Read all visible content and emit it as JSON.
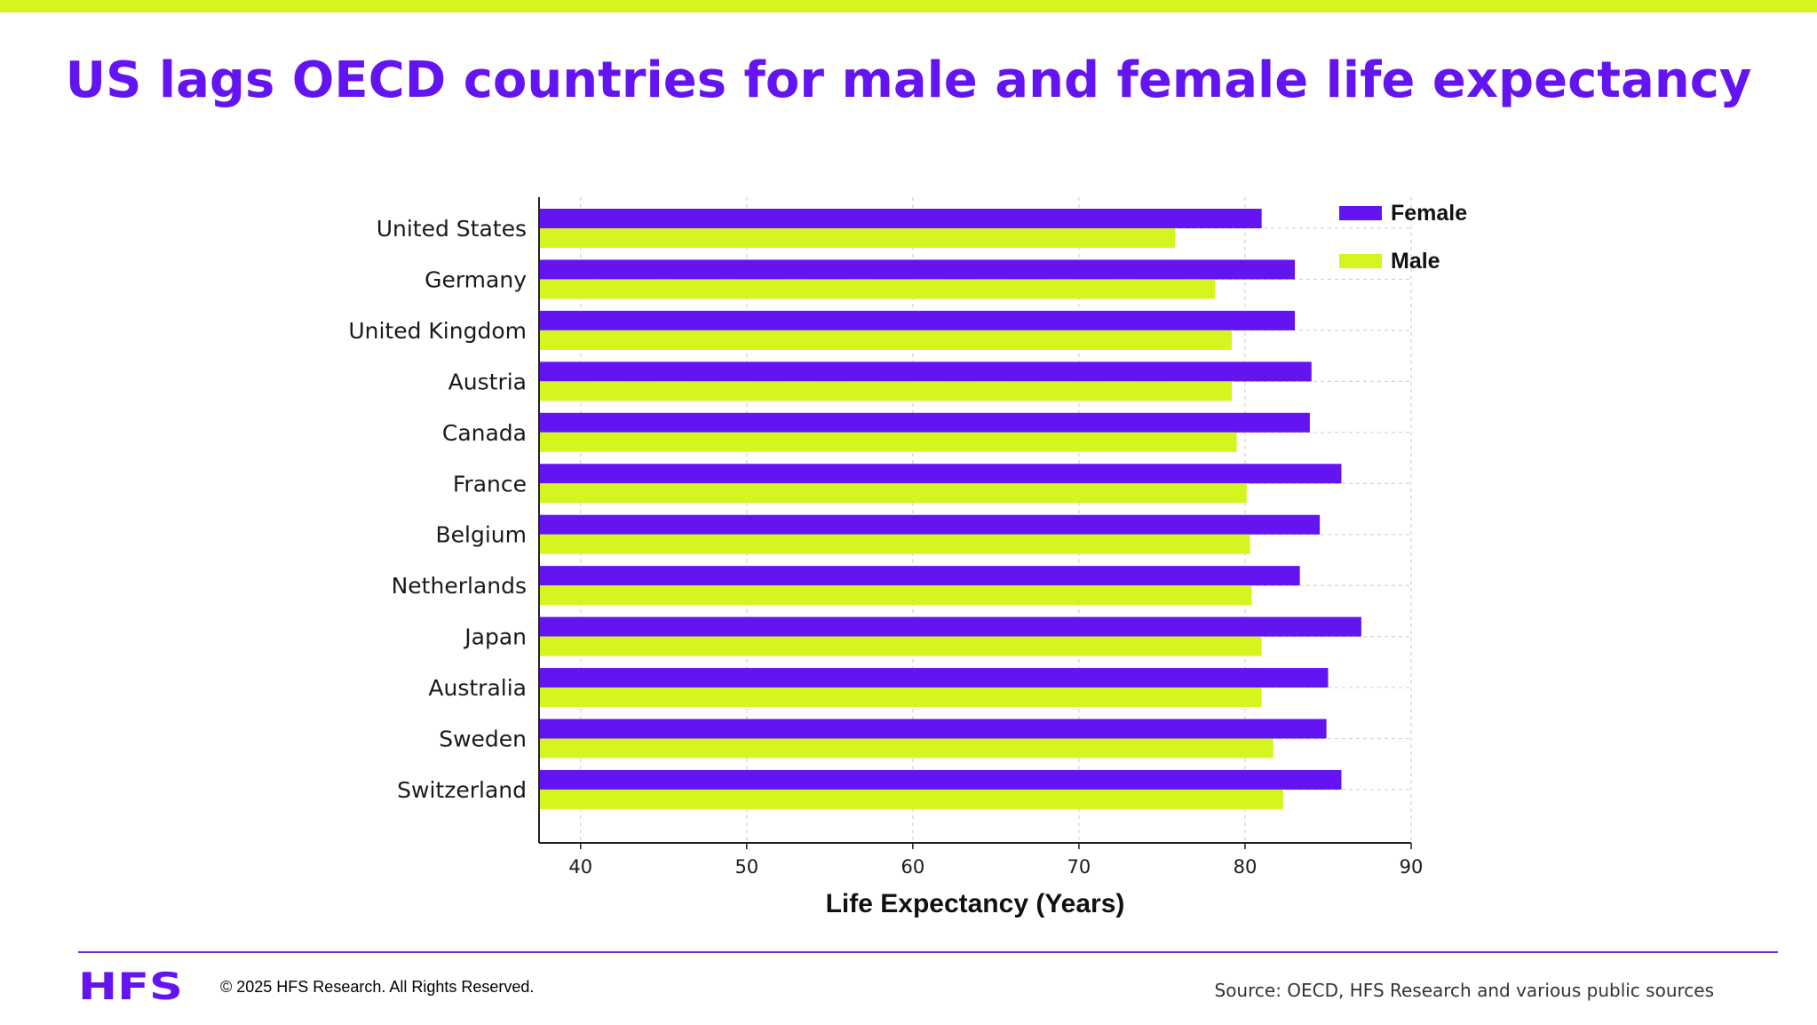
{
  "colors": {
    "accent_green": "#d6f520",
    "brand_purple": "#6414f0",
    "female_bar": "#6414f0",
    "male_bar": "#d6f520"
  },
  "header": {
    "title": "US lags OECD countries for male and female life expectancy"
  },
  "footer": {
    "logo_text": "HFS",
    "copyright": "© 2025 HFS Research. All Rights Reserved.",
    "source": "Source: OECD, HFS Research and various public sources"
  },
  "chart_data": {
    "type": "bar",
    "orientation": "horizontal",
    "title": "",
    "xlabel": "Life Expectancy (Years)",
    "ylabel": "",
    "xlim": [
      37.5,
      90
    ],
    "x_ticks": [
      40,
      50,
      60,
      70,
      80,
      90
    ],
    "grid": true,
    "legend_position": "top-right",
    "categories": [
      "United States",
      "Germany",
      "United Kingdom",
      "Austria",
      "Canada",
      "France",
      "Belgium",
      "Netherlands",
      "Japan",
      "Australia",
      "Sweden",
      "Switzerland"
    ],
    "series": [
      {
        "name": "Female",
        "color": "#6414f0",
        "values": [
          81.0,
          83.0,
          83.0,
          84.0,
          83.9,
          85.8,
          84.5,
          83.3,
          87.0,
          85.0,
          84.9,
          85.8
        ]
      },
      {
        "name": "Male",
        "color": "#d6f520",
        "values": [
          75.8,
          78.2,
          79.2,
          79.2,
          79.5,
          80.1,
          80.3,
          80.4,
          81.0,
          81.0,
          81.7,
          82.3
        ]
      }
    ]
  }
}
